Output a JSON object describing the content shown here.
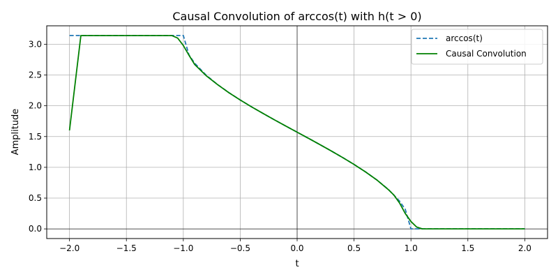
{
  "chart_data": {
    "type": "line",
    "title": "Causal Convolution of arccos(t) with h(t > 0)",
    "xlabel": "t",
    "ylabel": "Amplitude",
    "xlim": [
      -2.2,
      2.2
    ],
    "ylim": [
      -0.157,
      3.299
    ],
    "xticks": [
      -2.0,
      -1.5,
      -1.0,
      -0.5,
      0.0,
      0.5,
      1.0,
      1.5,
      2.0
    ],
    "xtick_labels": [
      "−2.0",
      "−1.5",
      "−1.0",
      "−0.5",
      "0.0",
      "0.5",
      "1.0",
      "1.5",
      "2.0"
    ],
    "yticks": [
      0.0,
      0.5,
      1.0,
      1.5,
      2.0,
      2.5,
      3.0
    ],
    "ytick_labels": [
      "0.0",
      "0.5",
      "1.0",
      "1.5",
      "2.0",
      "2.5",
      "3.0"
    ],
    "grid": true,
    "zero_lines": true,
    "legend_position": "top-right",
    "series": [
      {
        "name": "arccos(t)",
        "style": "dashed",
        "color": "#1f77b4",
        "x": [
          -2.0,
          -1.0,
          -1.0,
          -0.95,
          -0.9,
          -0.8,
          -0.7,
          -0.6,
          -0.5,
          -0.4,
          -0.3,
          -0.2,
          -0.1,
          0.0,
          0.1,
          0.2,
          0.3,
          0.4,
          0.5,
          0.6,
          0.7,
          0.8,
          0.9,
          0.95,
          1.0,
          1.0,
          2.0
        ],
        "y": [
          3.1416,
          3.1416,
          3.1416,
          2.824,
          2.6906,
          2.4981,
          2.3462,
          2.2143,
          2.0944,
          1.9823,
          1.8755,
          1.7722,
          1.671,
          1.5708,
          1.4706,
          1.3694,
          1.2661,
          1.1593,
          1.0472,
          0.9273,
          0.7954,
          0.6435,
          0.451,
          0.3176,
          0.0,
          0.0,
          0.0
        ]
      },
      {
        "name": "Causal Convolution",
        "style": "solid",
        "color": "#008000",
        "x": [
          -2.0,
          -1.9,
          -1.1,
          -1.05,
          -1.0,
          -0.95,
          -0.9,
          -0.8,
          -0.7,
          -0.6,
          -0.5,
          -0.4,
          -0.3,
          -0.2,
          -0.1,
          0.0,
          0.1,
          0.2,
          0.3,
          0.4,
          0.5,
          0.6,
          0.7,
          0.8,
          0.85,
          0.9,
          0.95,
          1.0,
          1.05,
          1.1,
          2.0
        ],
        "y": [
          1.6,
          3.14,
          3.14,
          3.1,
          2.98,
          2.82,
          2.67,
          2.49,
          2.345,
          2.213,
          2.094,
          1.982,
          1.876,
          1.772,
          1.671,
          1.571,
          1.471,
          1.369,
          1.266,
          1.159,
          1.047,
          0.927,
          0.795,
          0.64,
          0.55,
          0.42,
          0.25,
          0.12,
          0.03,
          0.0,
          0.0
        ]
      }
    ]
  }
}
